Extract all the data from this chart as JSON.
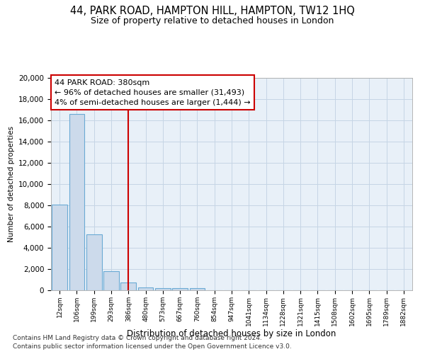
{
  "title_line1": "44, PARK ROAD, HAMPTON HILL, HAMPTON, TW12 1HQ",
  "title_line2": "Size of property relative to detached houses in London",
  "xlabel": "Distribution of detached houses by size in London",
  "ylabel": "Number of detached properties",
  "categories": [
    "12sqm",
    "106sqm",
    "199sqm",
    "293sqm",
    "386sqm",
    "480sqm",
    "573sqm",
    "667sqm",
    "760sqm",
    "854sqm",
    "947sqm",
    "1041sqm",
    "1134sqm",
    "1228sqm",
    "1321sqm",
    "1415sqm",
    "1508sqm",
    "1602sqm",
    "1695sqm",
    "1789sqm",
    "1882sqm"
  ],
  "values": [
    8050,
    16600,
    5300,
    1800,
    750,
    300,
    200,
    200,
    200,
    0,
    0,
    0,
    0,
    0,
    0,
    0,
    0,
    0,
    0,
    0,
    0
  ],
  "bar_color": "#ccdaeb",
  "bar_edge_color": "#6aaad4",
  "vline_x_index": 4,
  "vline_color": "#cc0000",
  "annotation_text": "44 PARK ROAD: 380sqm\n← 96% of detached houses are smaller (31,493)\n4% of semi-detached houses are larger (1,444) →",
  "annotation_box_color": "#cc0000",
  "ylim": [
    0,
    20000
  ],
  "yticks": [
    0,
    2000,
    4000,
    6000,
    8000,
    10000,
    12000,
    14000,
    16000,
    18000,
    20000
  ],
  "grid_color": "#c5d5e5",
  "background_color": "#e8f0f8",
  "footnote1": "Contains HM Land Registry data © Crown copyright and database right 2024.",
  "footnote2": "Contains public sector information licensed under the Open Government Licence v3.0."
}
